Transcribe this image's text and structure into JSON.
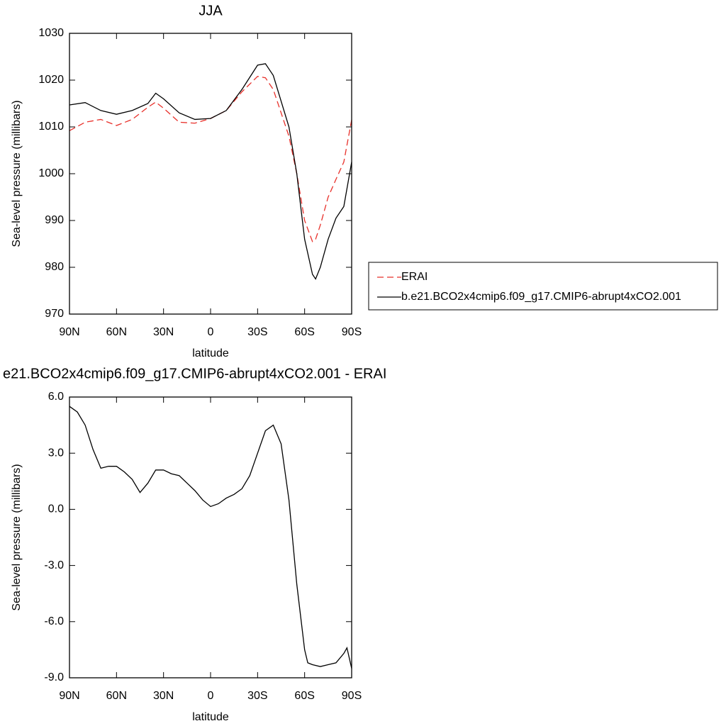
{
  "chart_data": [
    {
      "type": "line",
      "title": "JJA",
      "xlabel": "latitude",
      "ylabel": "Sea-level pressure (millibars)",
      "x": [
        90,
        80,
        70,
        60,
        50,
        40,
        35,
        30,
        20,
        10,
        0,
        -10,
        -20,
        -30,
        -35,
        -40,
        -50,
        -55,
        -60,
        -65,
        -67,
        -70,
        -75,
        -80,
        -85,
        -90
      ],
      "series": [
        {
          "name": "ERAI",
          "color": "#e8302a",
          "dash": true,
          "values": [
            1009.2,
            1011,
            1011.6,
            1010.3,
            1011.6,
            1014.2,
            1015.3,
            1014,
            1011,
            1010.8,
            1011.8,
            1013.5,
            1017.5,
            1020.8,
            1020.5,
            1018,
            1008,
            1000,
            990,
            985.5,
            986,
            989,
            995,
            998.8,
            1002.5,
            1011.5
          ]
        },
        {
          "name": "b.e21.BCO2x4cmip6.f09_g17.CMIP6-abrupt4xCO2.001",
          "color": "#000000",
          "dash": false,
          "values": [
            1014.7,
            1015.2,
            1013.5,
            1012.7,
            1013.5,
            1015.0,
            1017.2,
            1016.0,
            1013,
            1011.6,
            1011.8,
            1013.5,
            1018,
            1023.2,
            1023.5,
            1021,
            1010,
            1000,
            986,
            978.5,
            977.5,
            980,
            986,
            990.5,
            993,
            1002.5
          ]
        }
      ],
      "xlim": [
        90,
        -90
      ],
      "xticks": [
        {
          "value": 90,
          "label": "90N"
        },
        {
          "value": 60,
          "label": "60N"
        },
        {
          "value": 30,
          "label": "30N"
        },
        0,
        {
          "value": -30,
          "label": "30S"
        },
        {
          "value": -60,
          "label": "60S"
        },
        {
          "value": -90,
          "label": "90S"
        }
      ],
      "ylim": [
        970,
        1030
      ],
      "yticks": [
        970,
        980,
        990,
        1000,
        1010,
        1020,
        1030
      ],
      "legend": "right"
    },
    {
      "type": "line",
      "title": "e21.BCO2x4cmip6.f09_g17.CMIP6-abrupt4xCO2.001 - ERAI",
      "xlabel": "latitude",
      "ylabel": "Sea-level pressure (millibars)",
      "x": [
        90,
        85,
        80,
        75,
        70,
        65,
        60,
        55,
        50,
        45,
        40,
        35,
        30,
        25,
        20,
        15,
        10,
        5,
        0,
        -5,
        -10,
        -15,
        -20,
        -25,
        -30,
        -35,
        -40,
        -45,
        -50,
        -55,
        -60,
        -62,
        -65,
        -70,
        -75,
        -80,
        -85,
        -87,
        -90
      ],
      "series": [
        {
          "color": "#000000",
          "dash": false,
          "values": [
            5.5,
            5.2,
            4.5,
            3.2,
            2.2,
            2.3,
            2.3,
            2.0,
            1.6,
            0.9,
            1.4,
            2.1,
            2.1,
            1.9,
            1.8,
            1.4,
            1.0,
            0.5,
            0.15,
            0.3,
            0.6,
            0.8,
            1.1,
            1.8,
            3.0,
            4.2,
            4.5,
            3.5,
            0.5,
            -4,
            -7.5,
            -8.2,
            -8.3,
            -8.4,
            -8.3,
            -8.2,
            -7.7,
            -7.4,
            -8.5
          ]
        }
      ],
      "xlim": [
        90,
        -90
      ],
      "xticks": [
        {
          "value": 90,
          "label": "90N"
        },
        {
          "value": 60,
          "label": "60N"
        },
        {
          "value": 30,
          "label": "30N"
        },
        0,
        {
          "value": -30,
          "label": "30S"
        },
        {
          "value": -60,
          "label": "60S"
        },
        {
          "value": -90,
          "label": "90S"
        }
      ],
      "ylim": [
        -9,
        6
      ],
      "yticks": [
        {
          "value": -9,
          "label": "-9.0"
        },
        {
          "value": -6,
          "label": "-6.0"
        },
        {
          "value": -3,
          "label": "-3.0"
        },
        {
          "value": 0,
          "label": "0.0"
        },
        {
          "value": 3,
          "label": "3.0"
        },
        {
          "value": 6,
          "label": "6.0"
        }
      ]
    }
  ]
}
